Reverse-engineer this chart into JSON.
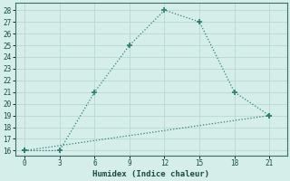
{
  "line1_x": [
    0,
    3,
    6,
    9,
    12,
    15,
    18,
    21
  ],
  "line1_y": [
    16,
    16,
    21,
    25,
    28,
    27,
    21,
    19
  ],
  "line2_x": [
    0,
    21
  ],
  "line2_y": [
    16,
    19
  ],
  "color": "#2d7d72",
  "bg_color": "#d6eeea",
  "grid_color": "#b8d8d2",
  "xlabel": "Humidex (Indice chaleur)",
  "xticks": [
    0,
    3,
    6,
    9,
    12,
    15,
    18,
    21
  ],
  "yticks": [
    16,
    17,
    18,
    19,
    20,
    21,
    22,
    23,
    24,
    25,
    26,
    27,
    28
  ],
  "ylim": [
    15.6,
    28.6
  ],
  "xlim": [
    -0.8,
    22.5
  ]
}
